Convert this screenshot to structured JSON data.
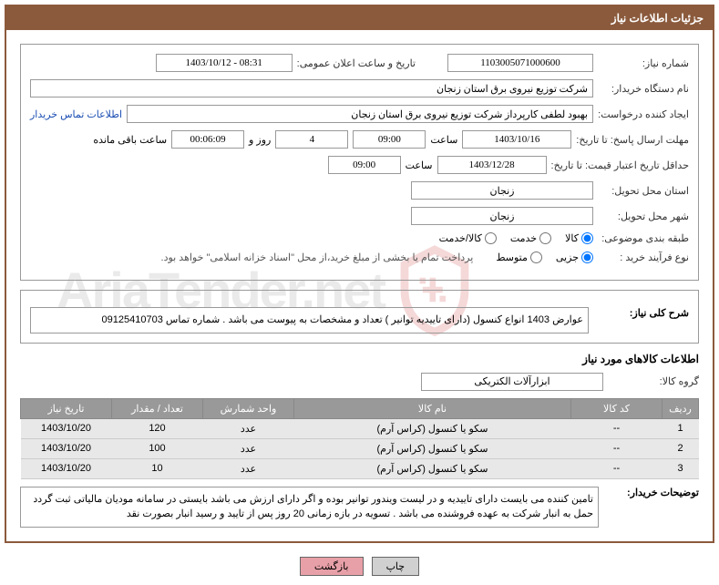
{
  "header": {
    "title": "جزئیات اطلاعات نیاز"
  },
  "fields": {
    "need_number_label": "شماره نیاز:",
    "need_number": "1103005071000600",
    "announce_date_label": "تاریخ و ساعت اعلان عمومی:",
    "announce_date": "1403/10/12 - 08:31",
    "buyer_org_label": "نام دستگاه خریدار:",
    "buyer_org": "شرکت توزیع نیروی برق استان زنجان",
    "creator_label": "ایجاد کننده درخواست:",
    "creator": "بهبود لطفی کارپرداز شرکت توزیع نیروی برق استان زنجان",
    "contact_link": "اطلاعات تماس خریدار",
    "deadline_label": "مهلت ارسال پاسخ: تا تاریخ:",
    "deadline_date": "1403/10/16",
    "time_label": "ساعت",
    "deadline_time": "09:00",
    "days_remaining": "4",
    "days_label": "روز و",
    "time_remaining": "00:06:09",
    "time_remaining_label": "ساعت باقی مانده",
    "validity_label": "حداقل تاریخ اعتبار قیمت: تا تاریخ:",
    "validity_date": "1403/12/28",
    "validity_time": "09:00",
    "delivery_province_label": "استان محل تحویل:",
    "delivery_province": "زنجان",
    "delivery_city_label": "شهر محل تحویل:",
    "delivery_city": "زنجان",
    "category_label": "طبقه بندی موضوعی:",
    "radio_goods": "کالا",
    "radio_service": "خدمت",
    "radio_goods_service": "کالا/خدمت",
    "purchase_type_label": "نوع فرآیند خرید :",
    "radio_partial": "جزیی",
    "radio_medium": "متوسط",
    "purchase_note": "پرداخت تمام یا بخشی از مبلغ خرید،از محل \"اسناد خزانه اسلامی\" خواهد بود.",
    "overall_desc_label": "شرح کلی نیاز:",
    "overall_desc": "عوارض 1403 انواع کنسول (دارای تاییدیه توانیر ) تعداد و مشخصات به پیوست می باشد . شماره تماس 09125410703",
    "goods_section_title": "اطلاعات کالاهای مورد نیاز",
    "goods_group_label": "گروه کالا:",
    "goods_group": "ابزارآلات الکتریکی",
    "buyer_notes_label": "توضیحات خریدار:",
    "buyer_notes": "تامین کننده می بایست دارای تاییدیه و در لیست ویندور توانیر بوده و اگر دارای ارزش می باشد بایستی در سامانه مودیان مالیاتی ثبت گردد حمل به انبار شرکت به عهده فروشنده می باشد . تسویه در بازه زمانی 20 روز پس از تایید و رسید انبار بصورت نقد"
  },
  "table": {
    "headers": {
      "row": "ردیف",
      "code": "کد کالا",
      "name": "نام کالا",
      "unit": "واحد شمارش",
      "qty": "تعداد / مقدار",
      "date": "تاریخ نیاز"
    },
    "rows": [
      {
        "row": "1",
        "code": "--",
        "name": "سکو یا کنسول (کراس آرم)",
        "unit": "عدد",
        "qty": "120",
        "date": "1403/10/20"
      },
      {
        "row": "2",
        "code": "--",
        "name": "سکو یا کنسول (کراس آرم)",
        "unit": "عدد",
        "qty": "100",
        "date": "1403/10/20"
      },
      {
        "row": "3",
        "code": "--",
        "name": "سکو یا کنسول (کراس آرم)",
        "unit": "عدد",
        "qty": "10",
        "date": "1403/10/20"
      }
    ]
  },
  "buttons": {
    "print": "چاپ",
    "back": "بازگشت"
  },
  "watermark": {
    "text": "AriaTender.net"
  }
}
